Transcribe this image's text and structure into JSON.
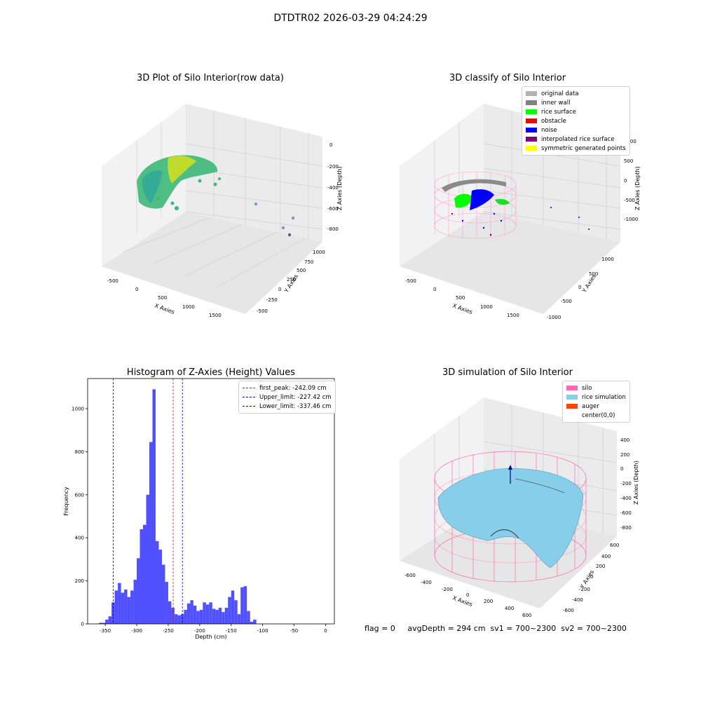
{
  "suptitle": "DTDTR02 2026-03-29 04:24:29",
  "panels": {
    "raw": {
      "title": "3D Plot of Silo Interior(row data)",
      "xlabel": "X Axies",
      "ylabel": "Y Axies",
      "zlabel": "Z Axies (Depth)",
      "xticks": [
        "-500",
        "0",
        "500",
        "1000",
        "1500"
      ],
      "yticks": [
        "-500",
        "-250",
        "0",
        "250",
        "500",
        "750",
        "1000"
      ],
      "zticks": [
        "0",
        "-200",
        "-400",
        "-600",
        "-800"
      ]
    },
    "classify": {
      "title": "3D classify of Silo Interior",
      "xlabel": "X Axies",
      "ylabel": "Y Axies",
      "zlabel": "Z Axies (Depth)",
      "xticks": [
        "-500",
        "0",
        "500",
        "1000",
        "1500"
      ],
      "yticks": [
        "-1000",
        "-500",
        "0",
        "500",
        "1000"
      ],
      "zticks": [
        "1000",
        "500",
        "0",
        "-500",
        "-1000"
      ],
      "legend": [
        {
          "label": "original data",
          "color": "#b3b3b3"
        },
        {
          "label": "inner wall",
          "color": "#808080"
        },
        {
          "label": "rice surface",
          "color": "#00ff00"
        },
        {
          "label": "obstacle",
          "color": "#ff0000"
        },
        {
          "label": "noise",
          "color": "#0000ff"
        },
        {
          "label": "interpolated rice surface",
          "color": "#800080"
        },
        {
          "label": "symmetric generated points",
          "color": "#ffff00"
        }
      ]
    },
    "simulation": {
      "title": "3D simulation of Silo Interior",
      "xlabel": "X Axies",
      "ylabel": "Y Axies",
      "zlabel": "Z Axies (Depth)",
      "xticks": [
        "-600",
        "-400",
        "-200",
        "0",
        "200",
        "400",
        "600"
      ],
      "yticks": [
        "-600",
        "-400",
        "-200",
        "0",
        "200",
        "400",
        "600"
      ],
      "zticks": [
        "400",
        "200",
        "0",
        "-200",
        "-400",
        "-600",
        "-800"
      ],
      "legend": [
        {
          "label": "silo",
          "color": "#ff69b4"
        },
        {
          "label": "rice simulation",
          "color": "#87ceeb"
        },
        {
          "label": "auger",
          "color": "#ff4500"
        },
        {
          "label": "center(0,0)",
          "color": ""
        }
      ]
    }
  },
  "chart_data": [
    {
      "type": "bar",
      "title": "Histogram of Z-Axies (Height) Values",
      "xlabel": "Depth (cm)",
      "ylabel": "Frequency",
      "xlim": [
        -378,
        14
      ],
      "ylim": [
        0,
        1140
      ],
      "xticks": [
        -350,
        -300,
        -250,
        -200,
        -150,
        -100,
        -50,
        0
      ],
      "yticks": [
        0,
        200,
        400,
        600,
        800,
        1000
      ],
      "bar_color": "#5050ff",
      "bin_start": -360,
      "bin_width": 5,
      "values": [
        5,
        5,
        20,
        35,
        100,
        155,
        190,
        145,
        160,
        125,
        155,
        205,
        305,
        440,
        460,
        600,
        845,
        1090,
        385,
        345,
        275,
        195,
        105,
        75,
        45,
        40,
        45,
        65,
        95,
        110,
        85,
        60,
        65,
        100,
        90,
        100,
        70,
        65,
        75,
        55,
        75,
        125,
        155,
        110,
        45,
        170,
        175,
        60,
        10,
        20
      ],
      "series": [
        {
          "name": "first_peak: -242.09 cm",
          "x": -242.09,
          "color": "#ff0000"
        },
        {
          "name": "Upper_limit: -227.42 cm",
          "x": -227.42,
          "color": "#0000aa"
        },
        {
          "name": "Lower_limit: -337.46 cm",
          "x": -337.46,
          "color": "#0000aa"
        }
      ],
      "legend_position": "upper right"
    }
  ],
  "footer": "flag = 0     avgDepth = 294 cm  sv1 = 700~2300  sv2 = 700~2300"
}
